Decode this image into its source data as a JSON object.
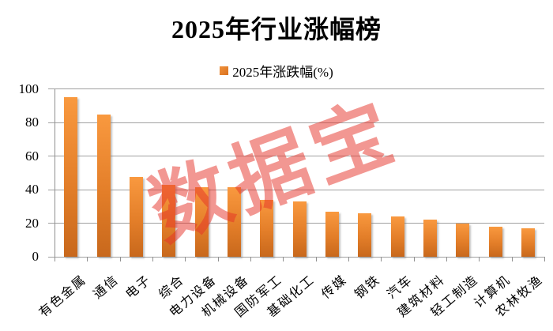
{
  "title": "2025年行业涨幅榜",
  "legend": {
    "label": "2025年涨跌幅(%)"
  },
  "watermark": {
    "text": "数据宝"
  },
  "colors": {
    "bar_top": "#F9993F",
    "bar_mid": "#E37E29",
    "bar_bottom": "#C8681C",
    "legend_swatch": "#E87E27",
    "gridline": "#A0A0A0",
    "axis": "#909090",
    "watermark": "#E63228",
    "text": "#000000"
  },
  "chart_data": {
    "type": "bar",
    "title": "2025年行业涨幅榜",
    "legend_entries": [
      "2025年涨跌幅(%)"
    ],
    "legend_position": "top-center",
    "categories": [
      "有色金属",
      "通信",
      "电子",
      "综合",
      "电力设备",
      "机械设备",
      "国防军工",
      "基础化工",
      "传媒",
      "钢铁",
      "汽车",
      "建筑材料",
      "轻工制造",
      "计算机",
      "农林牧渔"
    ],
    "values": [
      95,
      84.5,
      47.5,
      43,
      41.5,
      41.5,
      34,
      33,
      27,
      26,
      24,
      22,
      20,
      18,
      17
    ],
    "xlabel": "",
    "ylabel": "",
    "ylim": [
      0,
      100
    ],
    "yticks": [
      0,
      20,
      40,
      60,
      80,
      100
    ],
    "grid": true,
    "annotations": [
      "数据宝 watermark"
    ]
  }
}
